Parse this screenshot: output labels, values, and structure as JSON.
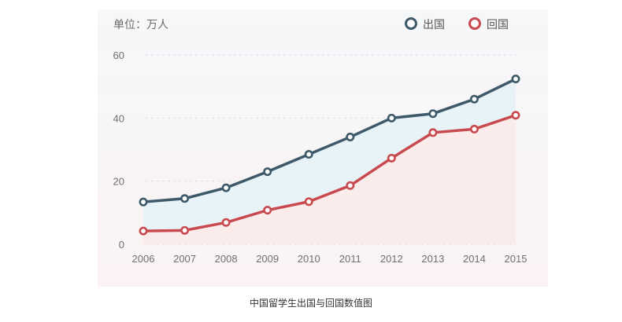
{
  "caption": "中国留学生出国与回国数值图",
  "chart_data": {
    "type": "line",
    "unit_label": "单位：万人",
    "x": [
      "2006",
      "2007",
      "2008",
      "2009",
      "2010",
      "2011",
      "2012",
      "2013",
      "2014",
      "2015"
    ],
    "series": [
      {
        "name": "出国",
        "color": "#3e5a6a",
        "values": [
          13.4,
          14.5,
          17.9,
          23.0,
          28.5,
          34.0,
          40.0,
          41.4,
          46.0,
          52.4
        ]
      },
      {
        "name": "回国",
        "color": "#c8494e",
        "values": [
          4.2,
          4.4,
          6.9,
          10.8,
          13.5,
          18.6,
          27.3,
          35.4,
          36.5,
          40.9
        ]
      }
    ],
    "yticks": [
      0,
      20,
      40,
      60
    ],
    "ylim": [
      0,
      60
    ],
    "grid": true,
    "legend": "top-right",
    "fill_between": true
  }
}
